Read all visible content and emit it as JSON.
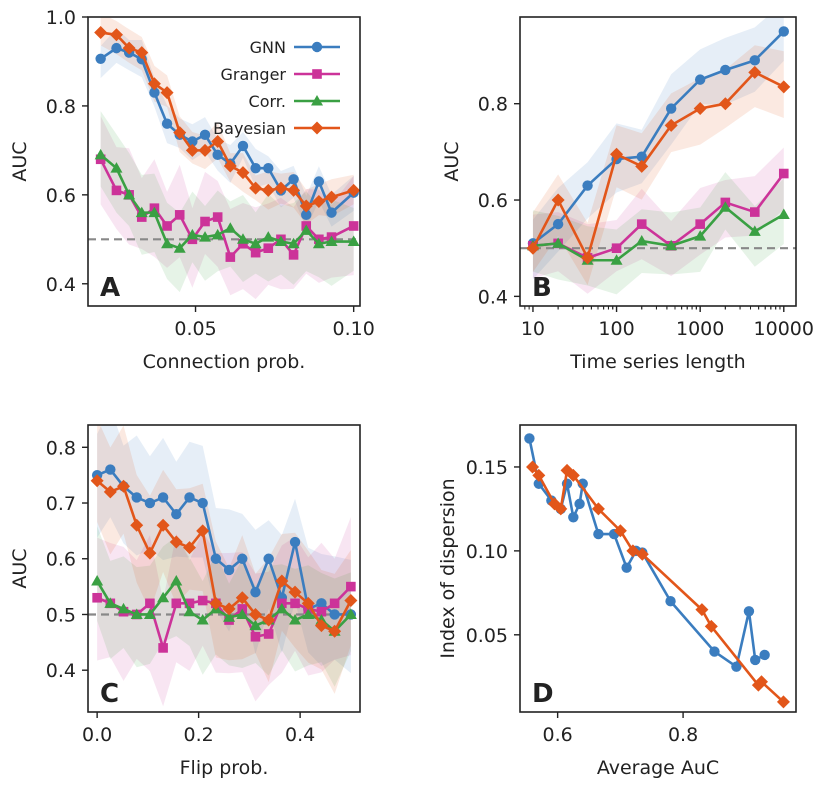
{
  "colors": {
    "gnn": "#3b7dbf",
    "granger": "#cc3399",
    "corr": "#3aa043",
    "bayesian": "#e2561a",
    "baseline": "#888888",
    "axis": "#222222"
  },
  "legend": [
    "GNN",
    "Granger",
    "Corr.",
    "Bayesian"
  ],
  "chart_data": [
    {
      "panel": "A",
      "type": "line",
      "xlabel": "Connection prob.",
      "ylabel": "AUC",
      "xlim": [
        0.016,
        0.102
      ],
      "ylim": [
        0.35,
        1.0
      ],
      "xticks": [
        0.05,
        0.1
      ],
      "xtick_labels": [
        "0.05",
        "0.10"
      ],
      "yticks": [
        0.4,
        0.6,
        0.8,
        1.0
      ],
      "ytick_labels": [
        "0.4",
        "0.6",
        "0.8",
        "1.0"
      ],
      "baseline": 0.5,
      "x": [
        0.02,
        0.025,
        0.029,
        0.033,
        0.037,
        0.041,
        0.045,
        0.049,
        0.053,
        0.057,
        0.061,
        0.065,
        0.069,
        0.073,
        0.077,
        0.081,
        0.085,
        0.089,
        0.093,
        0.1
      ],
      "series": [
        {
          "name": "GNN",
          "values": [
            0.906,
            0.93,
            0.92,
            0.905,
            0.83,
            0.76,
            0.735,
            0.72,
            0.735,
            0.69,
            0.67,
            0.71,
            0.66,
            0.66,
            0.61,
            0.635,
            0.555,
            0.63,
            0.56,
            0.605
          ],
          "band": 0.035
        },
        {
          "name": "Granger",
          "values": [
            0.68,
            0.61,
            0.6,
            0.55,
            0.57,
            0.53,
            0.555,
            0.5,
            0.54,
            0.55,
            0.46,
            0.49,
            0.47,
            0.48,
            0.5,
            0.465,
            0.53,
            0.5,
            0.505,
            0.53
          ],
          "band": 0.09
        },
        {
          "name": "Corr.",
          "values": [
            0.69,
            0.66,
            0.6,
            0.56,
            0.56,
            0.49,
            0.48,
            0.51,
            0.505,
            0.51,
            0.525,
            0.5,
            0.49,
            0.505,
            0.495,
            0.49,
            0.52,
            0.49,
            0.495,
            0.495
          ],
          "band": 0.08
        },
        {
          "name": "Bayesian",
          "values": [
            0.965,
            0.96,
            0.93,
            0.92,
            0.85,
            0.83,
            0.74,
            0.7,
            0.7,
            0.72,
            0.665,
            0.65,
            0.615,
            0.61,
            0.615,
            0.61,
            0.575,
            0.585,
            0.595,
            0.61
          ],
          "band": 0.035
        }
      ]
    },
    {
      "panel": "B",
      "type": "line",
      "xscale": "log",
      "xlabel": "Time series length",
      "ylabel": "AUC",
      "xlim": [
        7,
        14000
      ],
      "ylim": [
        0.38,
        0.98
      ],
      "xticks": [
        10,
        100,
        1000,
        10000
      ],
      "xtick_labels": [
        "10",
        "100",
        "1000",
        "10000"
      ],
      "yticks": [
        0.4,
        0.6,
        0.8
      ],
      "ytick_labels": [
        "0.4",
        "0.6",
        "0.8"
      ],
      "baseline": 0.5,
      "x": [
        10,
        20,
        45,
        100,
        200,
        450,
        1000,
        2000,
        4500,
        10000
      ],
      "series": [
        {
          "name": "GNN",
          "values": [
            0.51,
            0.55,
            0.63,
            0.685,
            0.69,
            0.79,
            0.85,
            0.87,
            0.89,
            0.95
          ],
          "band": 0.06
        },
        {
          "name": "Granger",
          "values": [
            0.505,
            0.51,
            0.48,
            0.5,
            0.55,
            0.505,
            0.55,
            0.595,
            0.575,
            0.655
          ],
          "band": 0.06
        },
        {
          "name": "Corr.",
          "values": [
            0.505,
            0.51,
            0.475,
            0.475,
            0.515,
            0.505,
            0.525,
            0.585,
            0.535,
            0.57
          ],
          "band": 0.06
        },
        {
          "name": "Bayesian",
          "values": [
            0.5,
            0.6,
            0.48,
            0.695,
            0.67,
            0.755,
            0.79,
            0.8,
            0.865,
            0.835
          ],
          "band": 0.06
        }
      ]
    },
    {
      "panel": "C",
      "type": "line",
      "xlabel": "Flip prob.",
      "ylabel": "AUC",
      "xlim": [
        -0.018,
        0.518
      ],
      "ylim": [
        0.325,
        0.84
      ],
      "xticks": [
        0.0,
        0.2,
        0.4
      ],
      "xtick_labels": [
        "0.0",
        "0.2",
        "0.4"
      ],
      "yticks": [
        0.4,
        0.5,
        0.6,
        0.7,
        0.8
      ],
      "ytick_labels": [
        "0.4",
        "0.5",
        "0.6",
        "0.7",
        "0.8"
      ],
      "baseline": 0.5,
      "x": [
        0.0,
        0.026,
        0.052,
        0.078,
        0.104,
        0.13,
        0.156,
        0.182,
        0.208,
        0.234,
        0.26,
        0.286,
        0.312,
        0.338,
        0.364,
        0.39,
        0.416,
        0.442,
        0.468,
        0.5
      ],
      "series": [
        {
          "name": "GNN",
          "values": [
            0.75,
            0.76,
            0.73,
            0.71,
            0.7,
            0.71,
            0.68,
            0.71,
            0.7,
            0.6,
            0.58,
            0.6,
            0.54,
            0.6,
            0.53,
            0.63,
            0.51,
            0.52,
            0.5,
            0.5
          ],
          "band": 0.09
        },
        {
          "name": "Granger",
          "values": [
            0.53,
            0.52,
            0.505,
            0.5,
            0.52,
            0.44,
            0.52,
            0.52,
            0.525,
            0.52,
            0.49,
            0.51,
            0.46,
            0.465,
            0.52,
            0.52,
            0.51,
            0.505,
            0.52,
            0.55
          ],
          "band": 0.1
        },
        {
          "name": "Corr.",
          "values": [
            0.56,
            0.52,
            0.51,
            0.5,
            0.5,
            0.53,
            0.56,
            0.505,
            0.49,
            0.51,
            0.495,
            0.5,
            0.48,
            0.49,
            0.51,
            0.49,
            0.5,
            0.49,
            0.47,
            0.5
          ],
          "band": 0.08
        },
        {
          "name": "Bayesian",
          "values": [
            0.74,
            0.72,
            0.73,
            0.66,
            0.61,
            0.66,
            0.63,
            0.62,
            0.65,
            0.52,
            0.51,
            0.53,
            0.5,
            0.49,
            0.56,
            0.54,
            0.52,
            0.48,
            0.47,
            0.525
          ],
          "band": 0.09
        }
      ]
    },
    {
      "panel": "D",
      "type": "line",
      "xlabel": "Average AuC",
      "ylabel": "Index of dispersion",
      "xlim": [
        0.54,
        0.98
      ],
      "ylim": [
        0.004,
        0.175
      ],
      "xticks": [
        0.6,
        0.8
      ],
      "xtick_labels": [
        "0.6",
        "0.8"
      ],
      "yticks": [
        0.05,
        0.1,
        0.15
      ],
      "ytick_labels": [
        "0.05",
        "0.10",
        "0.15"
      ],
      "series": [
        {
          "name": "GNN",
          "x": [
            0.555,
            0.57,
            0.59,
            0.605,
            0.615,
            0.625,
            0.635,
            0.64,
            0.665,
            0.69,
            0.71,
            0.725,
            0.735,
            0.78,
            0.85,
            0.885,
            0.905,
            0.915,
            0.93
          ],
          "values": [
            0.167,
            0.14,
            0.13,
            0.125,
            0.14,
            0.12,
            0.128,
            0.14,
            0.11,
            0.11,
            0.09,
            0.1,
            0.099,
            0.07,
            0.04,
            0.031,
            0.064,
            0.035,
            0.038
          ]
        },
        {
          "name": "Bayesian",
          "x": [
            0.56,
            0.57,
            0.595,
            0.605,
            0.615,
            0.625,
            0.665,
            0.7,
            0.72,
            0.735,
            0.83,
            0.845,
            0.92,
            0.925,
            0.96
          ],
          "values": [
            0.15,
            0.145,
            0.128,
            0.125,
            0.148,
            0.145,
            0.125,
            0.112,
            0.1,
            0.098,
            0.065,
            0.055,
            0.02,
            0.022,
            0.01
          ]
        }
      ]
    }
  ]
}
